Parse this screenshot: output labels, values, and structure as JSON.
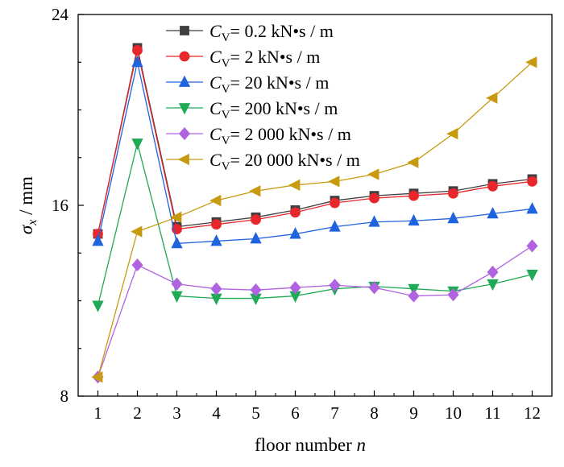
{
  "chart_data": {
    "type": "line",
    "xlabel": "floor number n",
    "ylabel": "σx / mm",
    "x": [
      1,
      2,
      3,
      4,
      5,
      6,
      7,
      8,
      9,
      10,
      11,
      12
    ],
    "xlim": [
      0.5,
      12.5
    ],
    "ylim": [
      8,
      24
    ],
    "yticks": [
      8,
      16,
      24
    ],
    "legend_position": "top-right",
    "grid": false,
    "series": [
      {
        "name": "CV= 0.2 kN•s / m",
        "legend": {
          "sym": "C",
          "sub": "V",
          "rest": "= 0.2 kN•s / m"
        },
        "color": "#3f3f3f",
        "marker": "square",
        "values": [
          14.8,
          22.6,
          15.1,
          15.3,
          15.5,
          15.8,
          16.2,
          16.4,
          16.5,
          16.6,
          16.9,
          17.1
        ]
      },
      {
        "name": "CV= 2 kN•s / m",
        "legend": {
          "sym": "C",
          "sub": "V",
          "rest": "= 2 kN•s / m"
        },
        "color": "#e8262b",
        "marker": "circle",
        "values": [
          14.8,
          22.5,
          15.0,
          15.2,
          15.4,
          15.7,
          16.1,
          16.3,
          16.4,
          16.5,
          16.8,
          17.0
        ]
      },
      {
        "name": "CV= 20 kN•s / m",
        "legend": {
          "sym": "C",
          "sub": "V",
          "rest": "= 20 kN•s / m"
        },
        "color": "#1f63e0",
        "marker": "triangle-up",
        "values": [
          14.5,
          22.0,
          14.4,
          14.5,
          14.6,
          14.8,
          15.1,
          15.3,
          15.35,
          15.45,
          15.65,
          15.85
        ]
      },
      {
        "name": "CV= 200 kN•s / m",
        "legend": {
          "sym": "C",
          "sub": "V",
          "rest": "= 200 kN•s / m"
        },
        "color": "#1faa55",
        "marker": "triangle-down",
        "values": [
          11.8,
          18.6,
          12.2,
          12.1,
          12.1,
          12.2,
          12.5,
          12.6,
          12.5,
          12.4,
          12.7,
          13.1
        ]
      },
      {
        "name": "CV= 2 000 kN•s / m",
        "legend": {
          "sym": "C",
          "sub": "V",
          "rest": "= 2 000 kN•s / m"
        },
        "color": "#b062e0",
        "marker": "diamond",
        "values": [
          8.8,
          13.5,
          12.7,
          12.5,
          12.45,
          12.55,
          12.65,
          12.55,
          12.2,
          12.25,
          13.2,
          14.3
        ]
      },
      {
        "name": "CV= 20 000 kN•s / m",
        "legend": {
          "sym": "C",
          "sub": "V",
          "rest": "= 20 000 kN•s / m"
        },
        "color": "#c89a10",
        "marker": "triangle-left",
        "values": [
          8.8,
          14.9,
          15.5,
          16.2,
          16.6,
          16.85,
          17.0,
          17.3,
          17.8,
          19.0,
          20.5,
          22.0
        ]
      }
    ]
  }
}
